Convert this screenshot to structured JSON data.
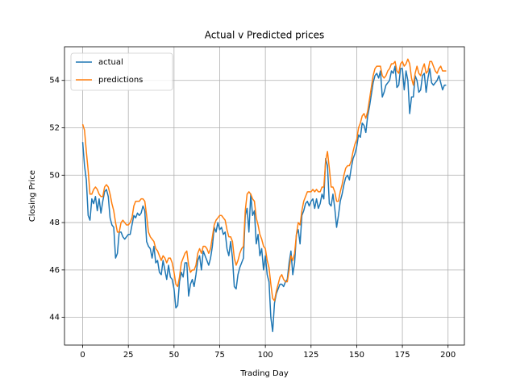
{
  "chart_data": {
    "type": "line",
    "title": "Actual v Predicted prices",
    "x_label": "Trading Day",
    "y_label": "Closing Price",
    "x": [
      0,
      1,
      2,
      3,
      4,
      5,
      6,
      7,
      8,
      9,
      10,
      11,
      12,
      13,
      14,
      15,
      16,
      17,
      18,
      19,
      20,
      21,
      22,
      23,
      24,
      25,
      26,
      27,
      28,
      29,
      30,
      31,
      32,
      33,
      34,
      35,
      36,
      37,
      38,
      39,
      40,
      41,
      42,
      43,
      44,
      45,
      46,
      47,
      48,
      49,
      50,
      51,
      52,
      53,
      54,
      55,
      56,
      57,
      58,
      59,
      60,
      61,
      62,
      63,
      64,
      65,
      66,
      67,
      68,
      69,
      70,
      71,
      72,
      73,
      74,
      75,
      76,
      77,
      78,
      79,
      80,
      81,
      82,
      83,
      84,
      85,
      86,
      87,
      88,
      89,
      90,
      91,
      92,
      93,
      94,
      95,
      96,
      97,
      98,
      99,
      100,
      101,
      102,
      103,
      104,
      105,
      106,
      107,
      108,
      109,
      110,
      111,
      112,
      113,
      114,
      115,
      116,
      117,
      118,
      119,
      120,
      121,
      122,
      123,
      124,
      125,
      126,
      127,
      128,
      129,
      130,
      131,
      132,
      133,
      134,
      135,
      136,
      137,
      138,
      139,
      140,
      141,
      142,
      143,
      144,
      145,
      146,
      147,
      148,
      149,
      150,
      151,
      152,
      153,
      154,
      155,
      156,
      157,
      158,
      159,
      160,
      161,
      162,
      163,
      164,
      165,
      166,
      167,
      168,
      169,
      170,
      171,
      172,
      173,
      174,
      175,
      176,
      177,
      178,
      179,
      180,
      181,
      182,
      183,
      184,
      185,
      186,
      187,
      188,
      189,
      190,
      191,
      192,
      193,
      194,
      195,
      196,
      197,
      198,
      199
    ],
    "series": [
      {
        "name": "actual",
        "color": "#1f77b4",
        "values": [
          51.4,
          50.4,
          49.8,
          48.3,
          48.1,
          49.0,
          48.8,
          49.1,
          48.5,
          49.0,
          48.4,
          48.9,
          49.3,
          49.4,
          49.1,
          48.2,
          47.9,
          47.8,
          46.5,
          46.7,
          47.6,
          47.6,
          47.4,
          47.3,
          47.4,
          47.5,
          47.5,
          47.9,
          48.3,
          48.2,
          48.4,
          48.3,
          48.4,
          48.7,
          48.5,
          47.2,
          47.0,
          46.9,
          46.5,
          47.0,
          46.3,
          46.4,
          45.9,
          45.8,
          46.4,
          46.0,
          45.6,
          46.2,
          45.7,
          45.6,
          45.2,
          44.4,
          44.5,
          45.5,
          45.9,
          45.7,
          46.3,
          46.3,
          44.9,
          45.4,
          45.6,
          45.3,
          45.8,
          46.4,
          46.6,
          46.0,
          46.8,
          46.6,
          46.4,
          46.2,
          46.5,
          47.0,
          47.8,
          47.6,
          48.0,
          47.7,
          47.8,
          47.5,
          47.6,
          46.9,
          46.6,
          47.2,
          46.5,
          45.3,
          45.2,
          45.8,
          46.1,
          46.3,
          46.5,
          48.3,
          48.6,
          47.6,
          49.2,
          48.3,
          48.5,
          47.1,
          47.5,
          46.6,
          46.9,
          46.0,
          46.6,
          45.8,
          45.5,
          44.0,
          43.4,
          44.6,
          45.0,
          45.2,
          45.4,
          45.4,
          45.3,
          45.5,
          45.6,
          46.3,
          46.8,
          45.8,
          46.3,
          47.5,
          47.7,
          47.1,
          48.3,
          48.5,
          48.8,
          48.9,
          48.7,
          48.9,
          49.0,
          48.6,
          49.0,
          48.6,
          48.8,
          49.2,
          49.0,
          50.7,
          50.4,
          48.8,
          48.7,
          49.2,
          48.6,
          47.8,
          48.3,
          48.9,
          49.2,
          49.6,
          49.9,
          50.0,
          49.8,
          50.3,
          50.7,
          50.9,
          51.2,
          51.7,
          51.6,
          52.2,
          52.1,
          51.8,
          52.5,
          52.9,
          53.4,
          53.9,
          54.2,
          54.3,
          54.1,
          54.4,
          53.3,
          53.5,
          53.8,
          53.9,
          54.0,
          54.4,
          54.3,
          54.6,
          53.7,
          53.8,
          54.5,
          54.5,
          53.6,
          54.4,
          54.0,
          52.6,
          53.3,
          53.3,
          54.2,
          54.0,
          53.5,
          53.6,
          54.2,
          54.3,
          53.5,
          54.1,
          54.5,
          53.9,
          53.8,
          53.9,
          54.0,
          54.2,
          53.9,
          53.6,
          53.8,
          53.8
        ]
      },
      {
        "name": "predictions",
        "color": "#ff7f0e",
        "values": [
          52.15,
          51.9,
          51.0,
          50.2,
          49.2,
          49.2,
          49.4,
          49.5,
          49.4,
          49.2,
          49.1,
          49.1,
          49.5,
          49.6,
          49.5,
          49.2,
          48.8,
          48.5,
          48.0,
          47.6,
          47.6,
          48.0,
          48.1,
          48.0,
          47.9,
          47.9,
          48.0,
          48.2,
          48.7,
          48.9,
          48.9,
          48.9,
          49.0,
          49.0,
          48.9,
          48.3,
          47.6,
          47.4,
          47.3,
          47.2,
          46.9,
          46.8,
          46.6,
          46.4,
          46.6,
          46.5,
          46.3,
          46.5,
          46.5,
          46.3,
          45.9,
          45.4,
          45.3,
          45.7,
          46.3,
          46.5,
          46.7,
          46.8,
          46.2,
          45.9,
          46.0,
          46.0,
          46.2,
          46.7,
          46.9,
          46.7,
          47.0,
          47.0,
          46.9,
          46.7,
          46.9,
          47.4,
          47.9,
          48.1,
          48.2,
          48.3,
          48.3,
          48.2,
          48.1,
          47.7,
          47.4,
          47.4,
          47.2,
          46.5,
          46.2,
          46.4,
          46.7,
          46.9,
          47.0,
          48.5,
          49.2,
          49.3,
          49.2,
          49.0,
          48.9,
          48.2,
          47.9,
          47.5,
          47.3,
          47.0,
          46.9,
          46.4,
          46.1,
          45.4,
          44.8,
          44.7,
          45.1,
          45.4,
          45.7,
          45.8,
          45.6,
          45.5,
          45.5,
          46.0,
          46.6,
          46.4,
          46.7,
          47.5,
          48.0,
          47.9,
          48.5,
          48.9,
          49.1,
          49.3,
          49.3,
          49.3,
          49.4,
          49.3,
          49.4,
          49.3,
          49.3,
          49.5,
          49.5,
          50.6,
          51.0,
          50.3,
          49.5,
          49.5,
          49.3,
          48.9,
          48.9,
          49.3,
          49.6,
          50.0,
          50.3,
          50.4,
          50.4,
          50.6,
          51.0,
          51.3,
          51.5,
          52.0,
          52.2,
          52.5,
          52.6,
          52.4,
          52.7,
          53.2,
          53.7,
          54.2,
          54.5,
          54.6,
          54.6,
          54.6,
          54.2,
          54.1,
          54.2,
          54.4,
          54.5,
          54.7,
          54.7,
          54.8,
          54.4,
          54.3,
          54.7,
          54.8,
          54.6,
          54.7,
          54.9,
          54.7,
          54.1,
          53.8,
          54.3,
          54.6,
          54.3,
          54.2,
          54.5,
          54.7,
          54.3,
          54.4,
          54.8,
          54.8,
          54.6,
          54.4,
          54.3,
          54.5,
          54.6,
          54.4,
          54.4,
          54.4
        ]
      }
    ],
    "xlim": [
      -9.95,
      208.95
    ],
    "xticks": [
      0,
      25,
      50,
      75,
      100,
      125,
      150,
      175,
      200
    ],
    "ylim": [
      42.83,
      55.42
    ],
    "yticks": [
      44,
      46,
      48,
      50,
      52,
      54
    ],
    "grid": true,
    "legend": "upper left"
  }
}
